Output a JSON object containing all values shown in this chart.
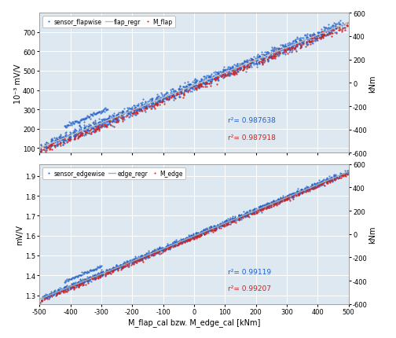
{
  "top": {
    "legend": [
      "sensor_flapwise",
      "flap_regr",
      "M_flap"
    ],
    "ylabel_left": "10⁻³ mV/V",
    "ylabel_right": "kNm",
    "ylim_left": [
      75,
      800
    ],
    "ylim_right": [
      -600,
      600
    ],
    "yticks_left": [
      100,
      200,
      300,
      400,
      500,
      600,
      700
    ],
    "yticks_right": [
      -600,
      -400,
      -200,
      0,
      200,
      400,
      600
    ],
    "r2_blue": "r²= 0.987638",
    "r2_red": "r²= 0.987918",
    "color_blue": "#1f5fcc",
    "color_red": "#cc2222",
    "color_regr": "#bbbbbb"
  },
  "bottom": {
    "legend": [
      "sensor_edgewise",
      "edge_regr",
      "M_edge"
    ],
    "ylabel_left": "mV/V",
    "ylabel_right": "kNm",
    "ylim_left": [
      1.255,
      1.96
    ],
    "ylim_right": [
      -600,
      600
    ],
    "yticks_left": [
      1.3,
      1.4,
      1.5,
      1.6,
      1.7,
      1.8,
      1.9
    ],
    "yticks_right": [
      -600,
      -400,
      -200,
      0,
      200,
      400,
      600
    ],
    "r2_blue": "r²= 0.99119",
    "r2_red": "r²= 0.99207",
    "color_blue": "#1f5fcc",
    "color_red": "#cc2222",
    "color_regr": "#aaaaaa"
  },
  "xlim": [
    -500,
    500
  ],
  "xticks": [
    -500,
    -400,
    -300,
    -200,
    -100,
    0,
    100,
    200,
    300,
    400,
    500
  ],
  "xlabel": "M_flap_cal bzw. M_edge_cal [kNm]",
  "bg_color": "#dde8f0",
  "grid_color": "#ffffff",
  "fig_bg": "#ffffff"
}
